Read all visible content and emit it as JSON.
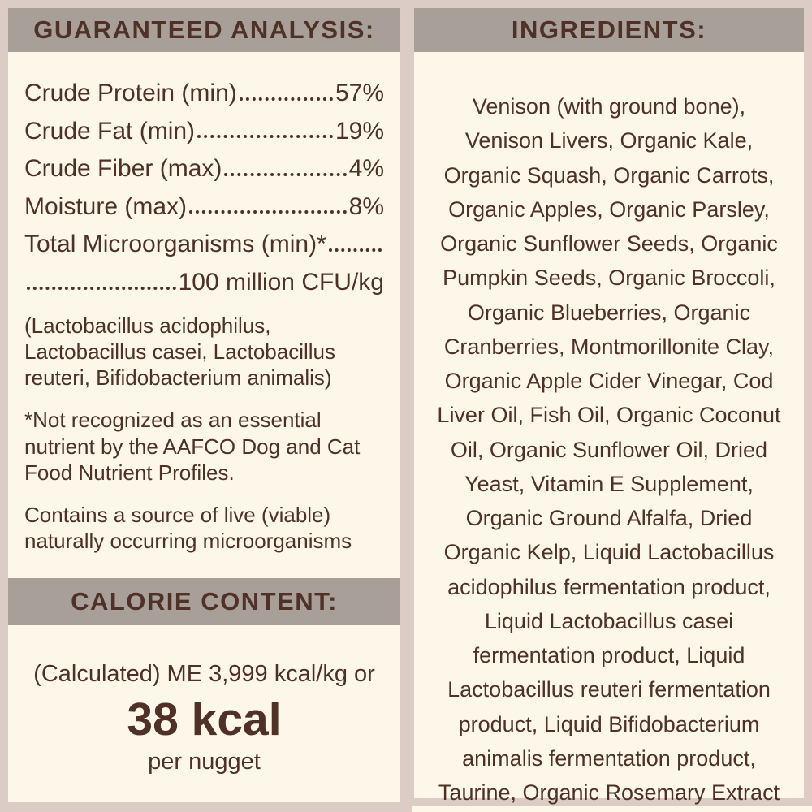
{
  "theme": {
    "bg": "#dbccc5",
    "bar": "#a89f99",
    "panel": "#fcf7e8",
    "ink": "#4f3128"
  },
  "guaranteed_analysis": {
    "title": "GUARANTEED ANALYSIS:",
    "rows": [
      {
        "label": "Crude Protein (min)",
        "value": "57%"
      },
      {
        "label": "Crude Fat (min)",
        "value": "19%"
      },
      {
        "label": "Crude Fiber (max)",
        "value": "4%"
      },
      {
        "label": "Moisture (max)",
        "value": "8%"
      },
      {
        "label": "Total Microorganisms (min)*",
        "value": ""
      },
      {
        "label": "",
        "value": "100 million CFU/kg"
      }
    ],
    "microorganisms_note": "(Lactobacillus acidophilus, Lactobacillus casei, Lactobacillus reuteri, Bifidobacterium animalis)",
    "footnote": "*Not recognized as an essential nutrient by the AAFCO Dog and Cat Food Nutrient Profiles.",
    "live_note": "Contains a source of live (viable) naturally occurring microorganisms"
  },
  "calorie_content": {
    "title": "CALORIE CONTENT:",
    "line": "(Calculated) ME 3,999 kcal/kg or",
    "kcal": "38 kcal",
    "unit": "per nugget"
  },
  "ingredients": {
    "title": "INGREDIENTS:",
    "text": "Venison (with ground bone), Venison Livers, Organic Kale, Organic Squash, Organic Carrots, Organic Apples, Organic Parsley, Organic Sunflower Seeds, Organic Pumpkin Seeds, Organic Broccoli, Organic Blueberries, Organic Cranberries, Montmorillonite Clay, Organic Apple Cider Vinegar, Cod Liver Oil, Fish Oil, Organic Coconut Oil, Organic Sunflower Oil, Dried Yeast, Vitamin E Supplement, Organic Ground Alfalfa, Dried Organic Kelp, Liquid Lactobacillus acidophilus fermentation product, Liquid Lactobacillus casei fermentation product, Liquid Lactobacillus reuteri fermentation product, Liquid Bifidobacterium animalis fermentation product, Taurine, Organic Rosemary Extract"
  }
}
